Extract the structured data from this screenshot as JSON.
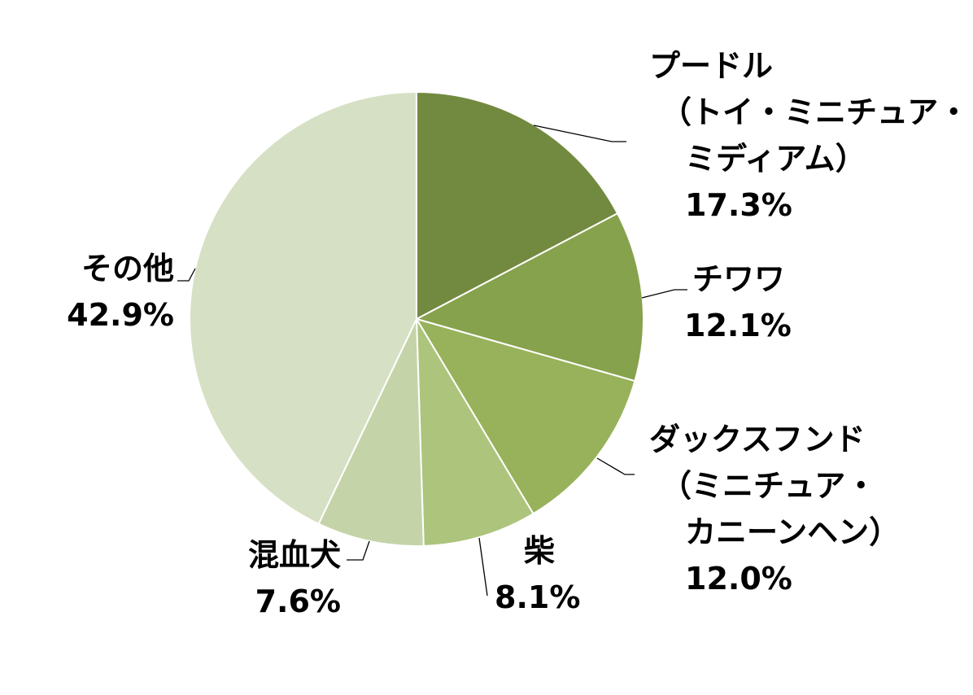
{
  "chart_data": {
    "type": "pie",
    "title": "",
    "start_angle_deg": 0,
    "direction": "clockwise",
    "slice_border_color": "#ffffff",
    "slices": [
      {
        "label_lines": [
          "プードル",
          "（トイ・ミニチュア・",
          "ミディアム）"
        ],
        "value": 17.3,
        "value_label": "17.3%",
        "color": "#728a3f"
      },
      {
        "label_lines": [
          "チワワ"
        ],
        "value": 12.1,
        "value_label": "12.1%",
        "color": "#87a24c"
      },
      {
        "label_lines": [
          "ダックスフンド",
          "（ミニチュア・",
          "カニーンヘン）"
        ],
        "value": 12.0,
        "value_label": "12.0%",
        "color": "#97b25a"
      },
      {
        "label_lines": [
          "柴"
        ],
        "value": 8.1,
        "value_label": "8.1%",
        "color": "#adc47c"
      },
      {
        "label_lines": [
          "混血犬"
        ],
        "value": 7.6,
        "value_label": "7.6%",
        "color": "#c5d4a8"
      },
      {
        "label_lines": [
          "その他"
        ],
        "value": 42.9,
        "value_label": "42.9%",
        "color": "#d6e0c4"
      }
    ]
  }
}
